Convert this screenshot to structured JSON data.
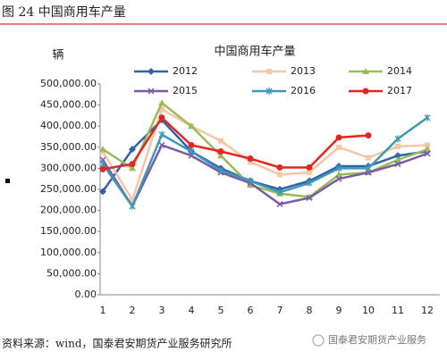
{
  "header": "图 24 中国商用车产量",
  "source": "资料来源：wind，国泰君安期货产业服务研究所",
  "watermark": "国泰君安期货产业服务",
  "chart_data": {
    "type": "line",
    "title": "中国商用车产量",
    "y_label": "辆",
    "categories": [
      "1",
      "2",
      "3",
      "4",
      "5",
      "6",
      "7",
      "8",
      "9",
      "10",
      "11",
      "12"
    ],
    "series": [
      {
        "name": "2012",
        "color": "#2f62a9",
        "marker": "diamond",
        "values": [
          245000,
          345000,
          415000,
          340000,
          300000,
          270000,
          250000,
          270000,
          305000,
          305000,
          330000,
          340000
        ]
      },
      {
        "name": "2013",
        "color": "#f5c7a6",
        "marker": "square",
        "values": [
          340000,
          225000,
          440000,
          400000,
          365000,
          315000,
          285000,
          290000,
          350000,
          325000,
          352000,
          355000
        ]
      },
      {
        "name": "2014",
        "color": "#9bbb59",
        "marker": "triangle",
        "values": [
          345000,
          300000,
          455000,
          400000,
          330000,
          260000,
          240000,
          232000,
          285000,
          290000,
          320000,
          345000
        ]
      },
      {
        "name": "2015",
        "color": "#7b5ba6",
        "marker": "cross",
        "values": [
          320000,
          210000,
          355000,
          330000,
          290000,
          265000,
          215000,
          230000,
          275000,
          290000,
          310000,
          335000
        ]
      },
      {
        "name": "2016",
        "color": "#3f98b6",
        "marker": "star",
        "values": [
          310000,
          210000,
          380000,
          340000,
          295000,
          270000,
          243000,
          265000,
          300000,
          300000,
          370000,
          420000
        ]
      },
      {
        "name": "2017",
        "color": "#e3261f",
        "marker": "circle",
        "values": [
          298000,
          310000,
          420000,
          355000,
          340000,
          323000,
          302000,
          302000,
          373000,
          378000,
          null,
          null
        ]
      }
    ],
    "ylim": [
      0,
      500000
    ],
    "yticks": [
      {
        "value": 0,
        "label": "0.00"
      },
      {
        "value": 50000,
        "label": "50,000.00"
      },
      {
        "value": 100000,
        "label": "100,000.00"
      },
      {
        "value": 150000,
        "label": "150,000.00"
      },
      {
        "value": 200000,
        "label": "200,000.00"
      },
      {
        "value": 250000,
        "label": "250,000.00"
      },
      {
        "value": 300000,
        "label": "300,000.00"
      },
      {
        "value": 350000,
        "label": "350,000.00"
      },
      {
        "value": 400000,
        "label": "400,000.00"
      },
      {
        "value": 450000,
        "label": "450,000.00"
      },
      {
        "value": 500000,
        "label": "500,000.00"
      }
    ],
    "grid": false
  }
}
